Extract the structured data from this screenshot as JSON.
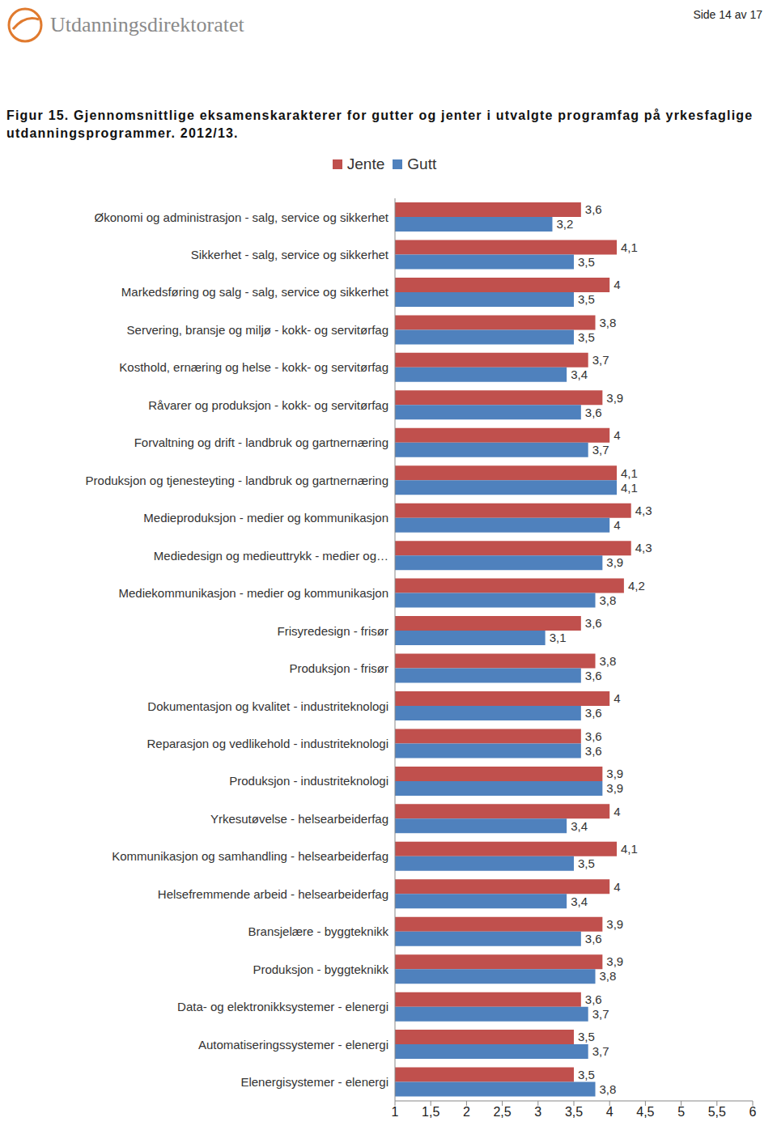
{
  "header": {
    "logo": "Utdanningsdirektoratet",
    "page": "Side 14 av 17"
  },
  "chart_data": {
    "type": "bar",
    "orientation": "horizontal",
    "title": "Figur 15. Gjennomsnittlige eksamenskarakterer for gutter og jenter i utvalgte programfag på yrkesfaglige utdanningsprogrammer. 2012/13.",
    "legend": "top",
    "grid": false,
    "data_labels": true,
    "categories": [
      "Økonomi og administrasjon - salg, service og sikkerhet",
      "Sikkerhet - salg, service og sikkerhet",
      "Markedsføring og salg - salg, service og sikkerhet",
      "Servering, bransje og miljø - kokk- og servitørfag",
      "Kosthold, ernæring og helse - kokk- og servitørfag",
      "Råvarer og produksjon - kokk- og servitørfag",
      "Forvaltning og drift - landbruk og gartnernæring",
      "Produksjon og tjenesteyting - landbruk og gartnernæring",
      "Medieproduksjon - medier og kommunikasjon",
      "Mediedesign og medieuttrykk - medier og…",
      "Mediekommunikasjon - medier og kommunikasjon",
      "Frisyredesign - frisør",
      "Produksjon - frisør",
      "Dokumentasjon og kvalitet - industriteknologi",
      "Reparasjon og vedlikehold - industriteknologi",
      "Produksjon - industriteknologi",
      "Yrkesutøvelse - helsearbeiderfag",
      "Kommunikasjon og samhandling - helsearbeiderfag",
      "Helsefremmende arbeid - helsearbeiderfag",
      "Bransjelære - byggteknikk",
      "Produksjon - byggteknikk",
      "Data- og elektronikksystemer - elenergi",
      "Automatiseringssystemer - elenergi",
      "Elenergisystemer - elenergi"
    ],
    "series": [
      {
        "name": "Jente",
        "color": "#c0504d",
        "values": [
          3.6,
          4.1,
          4,
          3.8,
          3.7,
          3.9,
          4,
          4.1,
          4.3,
          4.3,
          4.2,
          3.6,
          3.8,
          4,
          3.6,
          3.9,
          4,
          4.1,
          4,
          3.9,
          3.9,
          3.6,
          3.5,
          3.5
        ],
        "value_labels": [
          "3,6",
          "4,1",
          "4",
          "3,8",
          "3,7",
          "3,9",
          "4",
          "4,1",
          "4,3",
          "4,3",
          "4,2",
          "3,6",
          "3,8",
          "4",
          "3,6",
          "3,9",
          "4",
          "4,1",
          "4",
          "3,9",
          "3,9",
          "3,6",
          "3,5",
          "3,5"
        ]
      },
      {
        "name": "Gutt",
        "color": "#4f81bd",
        "values": [
          3.2,
          3.5,
          3.5,
          3.5,
          3.4,
          3.6,
          3.7,
          4.1,
          4,
          3.9,
          3.8,
          3.1,
          3.6,
          3.6,
          3.6,
          3.9,
          3.4,
          3.5,
          3.4,
          3.6,
          3.8,
          3.7,
          3.7,
          3.8
        ],
        "value_labels": [
          "3,2",
          "3,5",
          "3,5",
          "3,5",
          "3,4",
          "3,6",
          "3,7",
          "4,1",
          "4",
          "3,9",
          "3,8",
          "3,1",
          "3,6",
          "3,6",
          "3,6",
          "3,9",
          "3,4",
          "3,5",
          "3,4",
          "3,6",
          "3,8",
          "3,7",
          "3,7",
          "3,8"
        ]
      }
    ],
    "xlim": [
      1,
      6
    ],
    "xticks": [
      1,
      {
        "value": 1.5,
        "label": "1,5"
      },
      2,
      {
        "value": 2.5,
        "label": "2,5"
      },
      3,
      {
        "value": 3.5,
        "label": "3,5"
      },
      4,
      {
        "value": 4.5,
        "label": "4,5"
      },
      5,
      {
        "value": 5.5,
        "label": "5,5"
      },
      6
    ]
  }
}
